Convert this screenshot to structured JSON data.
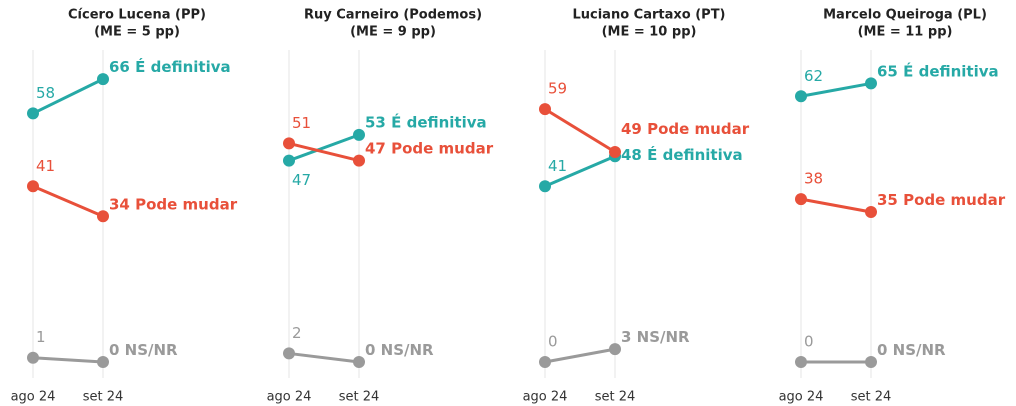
{
  "chart_data": [
    {
      "type": "line",
      "title": "Cícero Lucena (PP)",
      "subtitle": "(ME = 5 pp)",
      "categories": [
        "ago 24",
        "set 24"
      ],
      "ylim": [
        0,
        70
      ],
      "series": [
        {
          "name": "É definitiva",
          "color": "#26a9a6",
          "values": [
            58,
            66
          ]
        },
        {
          "name": "Pode mudar",
          "color": "#e8503a",
          "values": [
            41,
            34
          ]
        },
        {
          "name": "NS/NR",
          "color": "#9a9a9a",
          "values": [
            1,
            0
          ]
        }
      ]
    },
    {
      "type": "line",
      "title": "Ruy Carneiro (Podemos)",
      "subtitle": "(ME = 9 pp)",
      "categories": [
        "ago 24",
        "set 24"
      ],
      "ylim": [
        0,
        70
      ],
      "series": [
        {
          "name": "É definitiva",
          "color": "#26a9a6",
          "values": [
            47,
            53
          ]
        },
        {
          "name": "Pode mudar",
          "color": "#e8503a",
          "values": [
            51,
            47
          ]
        },
        {
          "name": "NS/NR",
          "color": "#9a9a9a",
          "values": [
            2,
            0
          ]
        }
      ]
    },
    {
      "type": "line",
      "title": "Luciano Cartaxo (PT)",
      "subtitle": "(ME = 10 pp)",
      "categories": [
        "ago 24",
        "set 24"
      ],
      "ylim": [
        0,
        70
      ],
      "series": [
        {
          "name": "É definitiva",
          "color": "#26a9a6",
          "values": [
            41,
            48
          ]
        },
        {
          "name": "Pode mudar",
          "color": "#e8503a",
          "values": [
            59,
            49
          ]
        },
        {
          "name": "NS/NR",
          "color": "#9a9a9a",
          "values": [
            0,
            3
          ]
        }
      ]
    },
    {
      "type": "line",
      "title": "Marcelo Queiroga (PL)",
      "subtitle": "(ME = 11 pp)",
      "categories": [
        "ago 24",
        "set 24"
      ],
      "ylim": [
        0,
        70
      ],
      "series": [
        {
          "name": "É definitiva",
          "color": "#26a9a6",
          "values": [
            62,
            65
          ]
        },
        {
          "name": "Pode mudar",
          "color": "#e8503a",
          "values": [
            38,
            35
          ]
        },
        {
          "name": "NS/NR",
          "color": "#9a9a9a",
          "values": [
            0,
            0
          ]
        }
      ]
    }
  ]
}
